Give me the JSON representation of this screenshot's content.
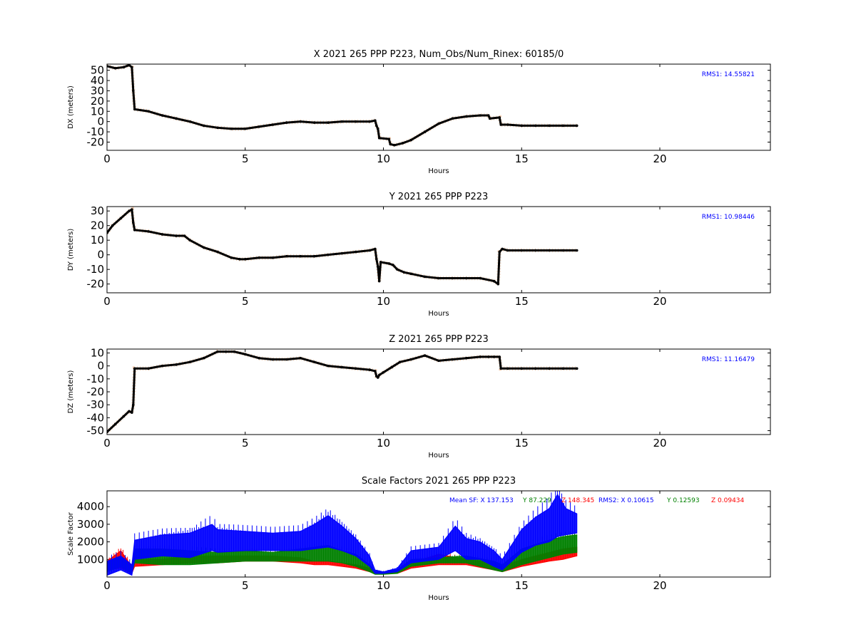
{
  "chart_data": [
    {
      "type": "line",
      "title": "X 2021 265 PPP  P223, Num_Obs/Num_Rinex: 60185/0",
      "xlabel": "Hours",
      "ylabel": "DX (meters)",
      "xlim": [
        0,
        24
      ],
      "ylim": [
        -28,
        56
      ],
      "xticks": [
        0,
        5,
        10,
        15,
        20
      ],
      "yticks": [
        -20,
        -10,
        0,
        10,
        20,
        30,
        40,
        50
      ],
      "annotation": "RMS1: 14.55821",
      "annotation_color": "#0000ff",
      "series": [
        {
          "color": "#000000",
          "x": [
            0,
            0.3,
            0.6,
            0.8,
            0.9,
            0.95,
            1.0,
            1.5,
            2.0,
            2.5,
            3.0,
            3.5,
            4.0,
            4.5,
            5.0,
            5.5,
            6.0,
            6.5,
            7.0,
            7.5,
            8.0,
            8.5,
            9.0,
            9.5,
            9.7,
            9.75,
            9.8,
            9.85,
            10.2,
            10.25,
            10.4,
            10.7,
            11.0,
            11.5,
            12.0,
            12.5,
            13.0,
            13.5,
            13.8,
            13.85,
            14.2,
            14.25,
            14.5,
            15.0,
            15.5,
            16.0,
            16.5,
            17.0
          ],
          "y": [
            54,
            52,
            53,
            55,
            53,
            30,
            12,
            10,
            6,
            3,
            0,
            -4,
            -6,
            -7,
            -7,
            -5,
            -3,
            -1,
            0,
            -1,
            -1,
            0,
            0,
            0,
            1,
            -4,
            -7,
            -16,
            -17,
            -22,
            -23,
            -21,
            -18,
            -10,
            -2,
            3,
            5,
            6,
            6,
            3,
            4,
            -3,
            -3,
            -4,
            -4,
            -4,
            -4,
            -4
          ]
        }
      ]
    },
    {
      "type": "line",
      "title": "Y 2021 265 PPP  P223",
      "xlabel": "Hours",
      "ylabel": "DY (meters)",
      "xlim": [
        0,
        24
      ],
      "ylim": [
        -26,
        33
      ],
      "xticks": [
        0,
        5,
        10,
        15,
        20
      ],
      "yticks": [
        -20,
        -10,
        0,
        10,
        20,
        30
      ],
      "annotation": "RMS1: 10.98446",
      "annotation_color": "#0000ff",
      "series": [
        {
          "color": "#000000",
          "x": [
            0,
            0.2,
            0.5,
            0.8,
            0.9,
            0.95,
            1.0,
            1.5,
            2.0,
            2.5,
            2.8,
            3.0,
            3.5,
            4.0,
            4.5,
            4.8,
            5.0,
            5.5,
            6.0,
            6.5,
            7.0,
            7.5,
            8.0,
            8.5,
            9.0,
            9.5,
            9.7,
            9.75,
            9.8,
            9.85,
            9.9,
            10.2,
            10.35,
            10.5,
            10.75,
            11.0,
            11.5,
            12.0,
            12.5,
            13.0,
            13.5,
            14.0,
            14.15,
            14.2,
            14.3,
            14.5,
            15.0,
            15.5,
            16.0,
            16.5,
            17.0
          ],
          "y": [
            15,
            20,
            25,
            30,
            31,
            22,
            17,
            16,
            14,
            13,
            13,
            10,
            5,
            2,
            -2,
            -3,
            -3,
            -2,
            -2,
            -1,
            -1,
            -1,
            0,
            1,
            2,
            3,
            4,
            -3,
            -8,
            -18,
            -5,
            -6,
            -7,
            -10,
            -12,
            -13,
            -15,
            -16,
            -16,
            -16,
            -16,
            -18,
            -20,
            2,
            4,
            3,
            3,
            3,
            3,
            3,
            3
          ]
        }
      ]
    },
    {
      "type": "line",
      "title": "Z 2021 265 PPP  P223",
      "xlabel": "Hours",
      "ylabel": "DZ (meters)",
      "xlim": [
        0,
        24
      ],
      "ylim": [
        -53,
        13
      ],
      "xticks": [
        0,
        5,
        10,
        15,
        20
      ],
      "yticks": [
        -50,
        -40,
        -30,
        -20,
        -10,
        0,
        10
      ],
      "annotation": "RMS1: 11.16479",
      "annotation_color": "#0000ff",
      "series": [
        {
          "color": "#000000",
          "x": [
            0,
            0.3,
            0.6,
            0.8,
            0.9,
            0.95,
            1.0,
            1.5,
            2.0,
            2.5,
            3.0,
            3.5,
            4.0,
            4.3,
            4.6,
            5.0,
            5.5,
            6.0,
            6.5,
            7.0,
            7.5,
            8.0,
            8.5,
            9.0,
            9.5,
            9.7,
            9.75,
            9.8,
            9.85,
            10.0,
            10.3,
            10.6,
            11.0,
            11.5,
            12.0,
            12.5,
            13.0,
            13.5,
            13.8,
            14.0,
            14.2,
            14.25,
            14.5,
            15.0,
            15.5,
            16.0,
            16.5,
            17.0
          ],
          "y": [
            -51,
            -45,
            -39,
            -35,
            -36,
            -30,
            -2,
            -2,
            0,
            1,
            3,
            6,
            11,
            11,
            11,
            9,
            6,
            5,
            5,
            6,
            3,
            0,
            -1,
            -2,
            -3,
            -4,
            -8,
            -9,
            -7,
            -5,
            -1,
            3,
            5,
            8,
            4,
            5,
            6,
            7,
            7,
            7,
            7,
            -2,
            -2,
            -2,
            -2,
            -2,
            -2,
            -2
          ]
        }
      ]
    },
    {
      "type": "scatter",
      "title": "Scale Factors 2021 265 PPP  P223",
      "xlabel": "Hours",
      "ylabel": "Scale Factor",
      "xlim": [
        0,
        24
      ],
      "ylim": [
        0,
        4900
      ],
      "xticks": [
        0,
        5,
        10,
        15,
        20
      ],
      "yticks": [
        1000,
        2000,
        3000,
        4000
      ],
      "annotations": [
        {
          "text": "Mean SF: X 137.153",
          "color": "#0000ff"
        },
        {
          "text": "Y  87.229",
          "color": "#008000"
        },
        {
          "text": "Z 148.345",
          "color": "#ff0000"
        },
        {
          "text": "RMS2: X  0.10615",
          "color": "#0000ff"
        },
        {
          "text": "Y  0.12593",
          "color": "#008000"
        },
        {
          "text": "Z  0.09434",
          "color": "#ff0000"
        }
      ],
      "series": [
        {
          "color": "#ff0000",
          "x": [
            0,
            0.5,
            0.9,
            1.0,
            2,
            3,
            4,
            5,
            6,
            7,
            7.5,
            8,
            8.5,
            9,
            9.5,
            9.7,
            10,
            10.5,
            11,
            12,
            13,
            14,
            14.3,
            15,
            16,
            16.5,
            17
          ],
          "low": [
            400,
            500,
            200,
            600,
            700,
            800,
            800,
            900,
            900,
            800,
            700,
            700,
            600,
            500,
            300,
            200,
            200,
            200,
            500,
            700,
            700,
            400,
            300,
            600,
            900,
            1000,
            1200
          ],
          "high": [
            900,
            1500,
            600,
            1000,
            1000,
            1200,
            1200,
            1200,
            1200,
            1100,
            900,
            900,
            800,
            700,
            500,
            300,
            300,
            400,
            800,
            1300,
            1000,
            800,
            600,
            1000,
            1400,
            1600,
            1700
          ]
        },
        {
          "color": "#008000",
          "x": [
            0,
            0.5,
            0.9,
            1.0,
            2,
            3,
            4,
            5,
            6,
            7,
            7.5,
            8,
            8.5,
            9,
            9.5,
            9.7,
            10,
            10.5,
            11,
            12,
            13,
            14,
            14.3,
            15,
            16,
            16.5,
            17
          ],
          "low": [
            300,
            600,
            200,
            800,
            700,
            700,
            800,
            900,
            900,
            900,
            900,
            900,
            800,
            600,
            300,
            150,
            150,
            200,
            600,
            800,
            800,
            400,
            300,
            700,
            1100,
            1300,
            1400
          ],
          "high": [
            800,
            1200,
            500,
            1600,
            1600,
            1500,
            1400,
            1500,
            1400,
            1600,
            1700,
            1800,
            1500,
            1300,
            700,
            300,
            300,
            400,
            1000,
            1100,
            1200,
            900,
            700,
            1600,
            2100,
            2300,
            2400
          ]
        },
        {
          "color": "#0000ff",
          "x": [
            0,
            0.5,
            0.9,
            1.0,
            2,
            3,
            3.8,
            4,
            5,
            6,
            7,
            7.5,
            8,
            8.5,
            9,
            9.5,
            9.7,
            10,
            10.5,
            11,
            12,
            12.6,
            13,
            13.5,
            14,
            14.3,
            15,
            15.5,
            16,
            16.3,
            16.6,
            17
          ],
          "low": [
            100,
            400,
            100,
            1000,
            1200,
            1100,
            1500,
            1400,
            1500,
            1500,
            1500,
            1600,
            1700,
            1500,
            1200,
            600,
            200,
            200,
            300,
            800,
            1000,
            1500,
            1000,
            1000,
            600,
            400,
            1400,
            1800,
            2000,
            2300,
            2400,
            2500
          ],
          "high": [
            900,
            1200,
            700,
            2100,
            2400,
            2500,
            3000,
            2700,
            2600,
            2500,
            2600,
            3000,
            3500,
            2900,
            2200,
            1200,
            400,
            300,
            500,
            1500,
            1700,
            2900,
            2200,
            2000,
            1500,
            1000,
            2700,
            3400,
            3900,
            4700,
            3900,
            3600
          ]
        }
      ]
    }
  ]
}
